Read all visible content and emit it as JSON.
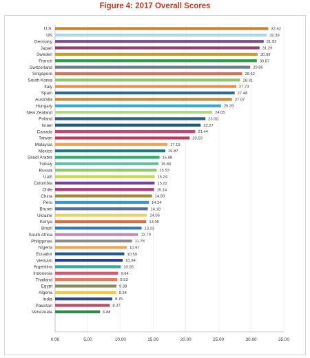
{
  "chart_data": {
    "type": "bar",
    "orientation": "horizontal",
    "title": "Figure 4: 2017 Overall Scores",
    "xlabel": "",
    "ylabel": "",
    "xlim": [
      0,
      35
    ],
    "ticks": [
      "0.00",
      "5.00",
      "10.00",
      "15.00",
      "20.00",
      "25.00",
      "30.00",
      "35.00"
    ],
    "grid": true,
    "legend": "none",
    "categories": [
      "U.S.",
      "UK",
      "Germany",
      "Japan",
      "Sweden",
      "France",
      "Switzerland",
      "Singapore",
      "South Korea",
      "Italy",
      "Spain",
      "Australia",
      "Hungary",
      "New Zealand",
      "Poland",
      "Israel",
      "Canada",
      "Taiwan",
      "Malaysia",
      "Mexico",
      "Saudi Arabia",
      "Turkey",
      "Russia",
      "UAE",
      "Colombia",
      "Chile",
      "China",
      "Peru",
      "Brunei",
      "Ukraine",
      "Kenya",
      "Brazil",
      "South Africa",
      "Philippines",
      "Nigeria",
      "Ecuador",
      "Vietnam",
      "Argentina",
      "Indonesia",
      "Thailand",
      "Egypt",
      "Algeria",
      "India",
      "Pakistan",
      "Venezuela"
    ],
    "values": [
      32.62,
      32.39,
      31.92,
      31.29,
      30.99,
      30.87,
      29.86,
      28.62,
      28.31,
      27.73,
      27.48,
      27.07,
      25.39,
      24.05,
      23.0,
      22.27,
      21.44,
      20.59,
      17.19,
      16.87,
      15.98,
      15.8,
      15.53,
      15.24,
      15.22,
      15.14,
      14.83,
      14.34,
      14.18,
      14.06,
      13.95,
      13.23,
      12.7,
      11.78,
      10.97,
      10.59,
      10.34,
      10.05,
      9.64,
      9.53,
      9.38,
      9.34,
      8.75,
      8.37,
      6.88
    ],
    "value_labels": [
      "32.62",
      "32.39",
      "31.92",
      "31.29",
      "30.99",
      "30.87",
      "29.86",
      "28.62",
      "28.31",
      "27.73",
      "27.48",
      "27.07",
      "25.39",
      "24.05",
      "23.00",
      "22.27",
      "21.44",
      "20.59",
      "17.19",
      "16.87",
      "15.98",
      "15.80",
      "15.53",
      "15.24",
      "15.22",
      "15.14",
      "14.83",
      "14.34",
      "14.18",
      "14.06",
      "13.95",
      "13.23",
      "12.70",
      "11.78",
      "10.97",
      "10.59",
      "10.34",
      "10.05",
      "9.64",
      "9.53",
      "9.38",
      "9.34",
      "8.75",
      "8.37",
      "6.88"
    ],
    "colors": [
      "#c7822f",
      "#a9d6ea",
      "#7b4f8c",
      "#8c3f6e",
      "#c79d2e",
      "#2e9a4a",
      "#6e7f8c",
      "#e36c4f",
      "#8ec46a",
      "#e8914a",
      "#2f6a9a",
      "#c98a3d",
      "#37a8d6",
      "#b2d88a",
      "#2f5f8a",
      "#1f5a7a",
      "#d6406e",
      "#c2385a",
      "#f2a24a",
      "#1f7a7a",
      "#2fae6a",
      "#5fc0a6",
      "#8ec86a",
      "#cad64a",
      "#7b3fa0",
      "#c2307a",
      "#a48a2e",
      "#2f9ad6",
      "#4f6fa0",
      "#e8d26a",
      "#e06a3f",
      "#2f7ab0",
      "#c28ab0",
      "#8a8a8a",
      "#f2a84a",
      "#1f5a8a",
      "#2f3f8a",
      "#2fae9a",
      "#e0506a",
      "#e87a5a",
      "#8a8a5a",
      "#f2c84a",
      "#2f4a8a",
      "#c24a6a",
      "#2f8a4a"
    ]
  }
}
